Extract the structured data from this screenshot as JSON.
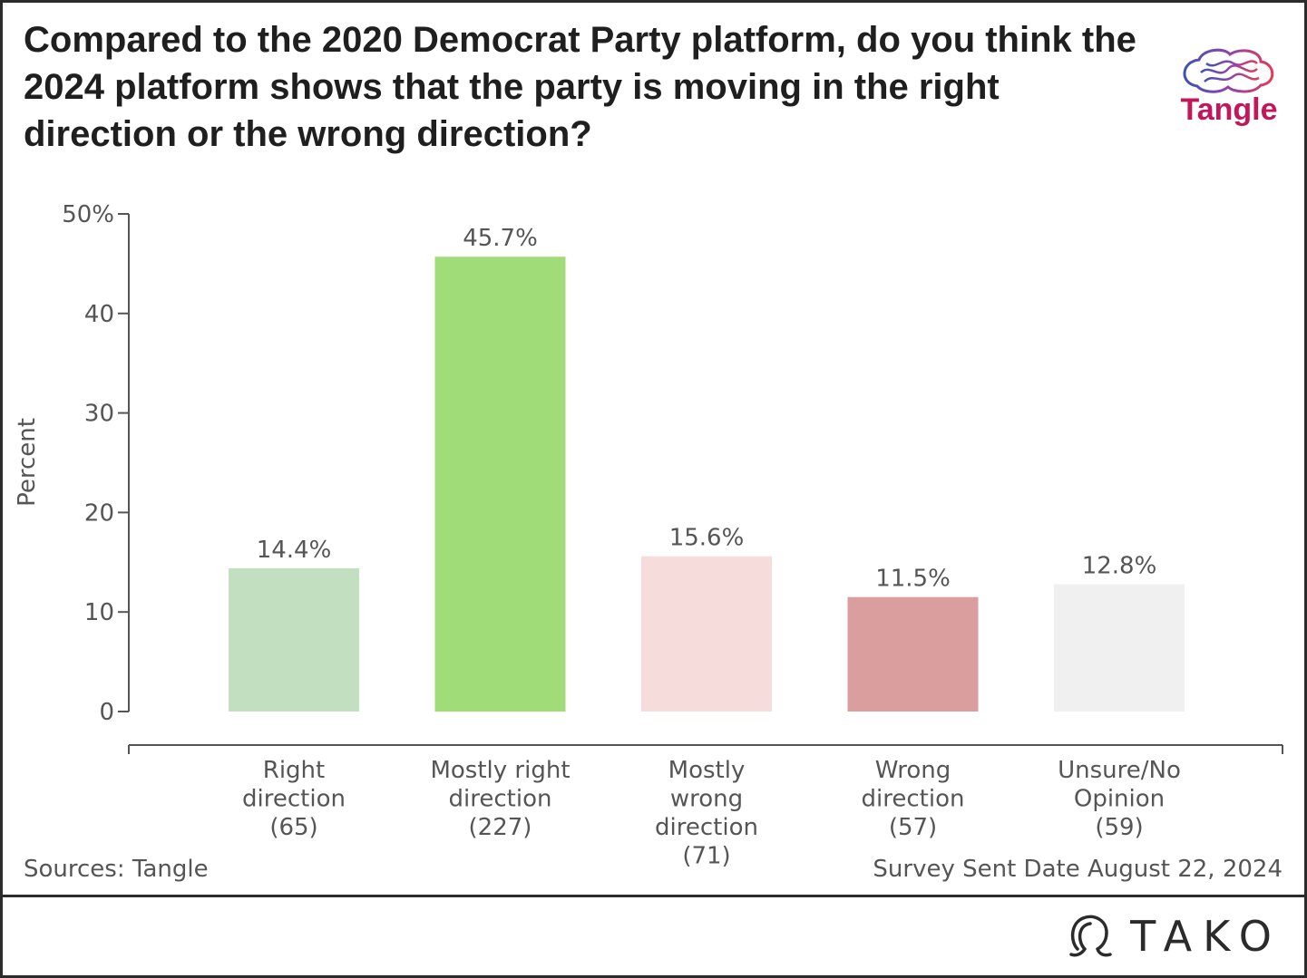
{
  "title": "Compared to the 2020 Democrat Party platform, do you think the 2024 platform shows that the party is moving in the right direction or the wrong direction?",
  "logo": {
    "text": "Tangle",
    "icon": "brain-icon"
  },
  "footer": {
    "source": "Sources: Tangle",
    "date": "Survey Sent Date August 22, 2024",
    "brand": "TAKO",
    "brand_icon": "omega-icon"
  },
  "chart_data": {
    "type": "bar",
    "title": "Compared to the 2020 Democrat Party platform, do you think the 2024 platform shows that the party is moving in the right direction or the wrong direction?",
    "xlabel": "",
    "ylabel": "Percent",
    "ylim": [
      0,
      50
    ],
    "yticks": [
      0,
      10,
      20,
      30,
      40,
      50
    ],
    "ytick_labels": [
      "0",
      "10",
      "20",
      "30",
      "40",
      "50%"
    ],
    "grid": false,
    "categories": [
      [
        "Right",
        "direction",
        "(65)"
      ],
      [
        "Mostly right",
        "direction",
        "(227)"
      ],
      [
        "Mostly",
        "wrong",
        "direction",
        "(71)"
      ],
      [
        "Wrong",
        "direction",
        "(57)"
      ],
      [
        "Unsure/No",
        "Opinion",
        "(59)"
      ]
    ],
    "values": [
      14.4,
      45.7,
      15.6,
      11.5,
      12.8
    ],
    "value_labels": [
      "14.4%",
      "45.7%",
      "15.6%",
      "11.5%",
      "12.8%"
    ],
    "colors": [
      "#c2e0c0",
      "#a0dc78",
      "#f7dcdc",
      "#db9e9e",
      "#f0f0f0"
    ]
  }
}
